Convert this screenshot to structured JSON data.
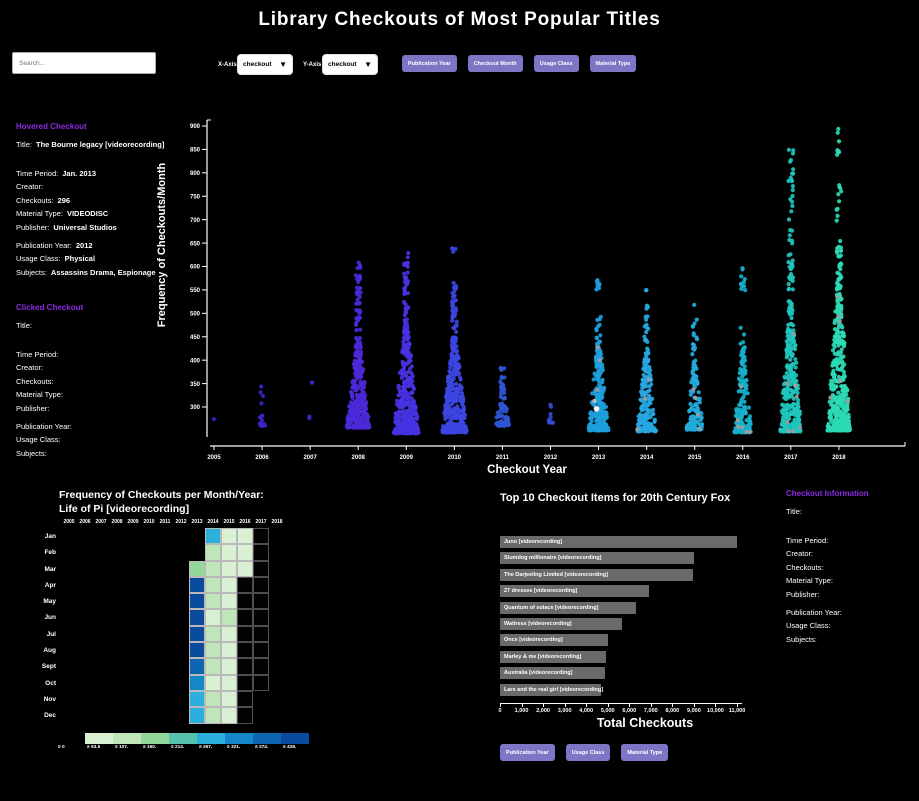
{
  "page": {
    "title": "Library Checkouts of Most Popular Titles"
  },
  "colors": {
    "background": "#000000",
    "heading_purple": "#8a2be2",
    "button_purple": "#7d76c4",
    "bar_gray": "#6a6a6a",
    "text": "#ffffff"
  },
  "controls": {
    "search_placeholder": "Search...",
    "x_axis_label": "X-Axis",
    "x_axis_value": "checkout",
    "y_axis_label": "Y-Axis",
    "y_axis_value": "checkout",
    "top_buttons": [
      "Publication Year",
      "Checkout Month",
      "Usage Class",
      "Material Type"
    ],
    "bottom_buttons": [
      "Publication Year",
      "Usage Class",
      "Material Type"
    ]
  },
  "panels": {
    "hovered": {
      "heading": "Hovered Checkout",
      "groups": [
        [
          {
            "label": "Title:",
            "value": "The Bourne legacy [videorecording]"
          }
        ],
        [
          {
            "label": "Time Period:",
            "value": "Jan. 2013"
          },
          {
            "label": "Creator:",
            "value": ""
          },
          {
            "label": "Checkouts:",
            "value": "296"
          },
          {
            "label": "Material Type:",
            "value": "VIDEODISC"
          },
          {
            "label": "Publisher:",
            "value": "Universal Studios"
          }
        ],
        [
          {
            "label": "Publication Year:",
            "value": "2012"
          },
          {
            "label": "Usage Class:",
            "value": "Physical"
          },
          {
            "label": "Subjects:",
            "value": "Assassins Drama, Espionage"
          }
        ]
      ]
    },
    "clicked": {
      "heading": "Clicked Checkout",
      "groups": [
        [
          {
            "label": "Title:",
            "value": ""
          }
        ],
        [
          {
            "label": "Time Period:",
            "value": ""
          },
          {
            "label": "Creator:",
            "value": ""
          },
          {
            "label": "Checkouts:",
            "value": ""
          },
          {
            "label": "Material Type:",
            "value": ""
          },
          {
            "label": "Publisher:",
            "value": ""
          }
        ],
        [
          {
            "label": "Publication Year:",
            "value": ""
          },
          {
            "label": "Usage Class:",
            "value": ""
          },
          {
            "label": "Subjects:",
            "value": ""
          }
        ]
      ]
    },
    "info": {
      "heading": "Checkout Information",
      "groups": [
        [
          {
            "label": "Title:",
            "value": ""
          }
        ],
        [
          {
            "label": "Time Period:",
            "value": ""
          },
          {
            "label": "Creator:",
            "value": ""
          },
          {
            "label": "Checkouts:",
            "value": ""
          },
          {
            "label": "Material Type:",
            "value": ""
          },
          {
            "label": "Publisher:",
            "value": ""
          }
        ],
        [
          {
            "label": "Publication Year:",
            "value": ""
          },
          {
            "label": "Usage Class:",
            "value": ""
          },
          {
            "label": "Subjects:",
            "value": ""
          }
        ]
      ]
    }
  },
  "chart_data": [
    {
      "type": "scatter",
      "xlabel": "Checkout Year",
      "ylabel": "Frequency of Checkouts/Month",
      "x_ticks": [
        "2005",
        "2006",
        "2007",
        "2008",
        "2009",
        "2010",
        "2011",
        "2012",
        "2013",
        "2014",
        "2015",
        "2016",
        "2017",
        "2018"
      ],
      "y_ticks": [
        "300",
        "350",
        "400",
        "450",
        "500",
        "550",
        "600",
        "650",
        "700",
        "750",
        "800",
        "850",
        "900"
      ],
      "ylim": [
        236,
        910
      ],
      "gray_color": "#9f9f9f",
      "highlight": {
        "year": 2013,
        "value": 296,
        "color": "#ffffff",
        "note": "hovered point: The Bourne legacy, Jan. 2013"
      },
      "clusters": [
        {
          "year": 2005,
          "color": "#3b20c2",
          "n": 1,
          "lo": 274,
          "hi": 277,
          "w": 1,
          "tails": [],
          "gray": 0
        },
        {
          "year": 2006,
          "color": "#4023c9",
          "n": 13,
          "lo": 260,
          "hi": 318,
          "w": 3,
          "tails": [
            [
              322,
              348,
              3
            ]
          ],
          "gray": 0
        },
        {
          "year": 2007,
          "color": "#4326cd",
          "n": 2,
          "lo": 276,
          "hi": 300,
          "w": 1,
          "tails": [
            [
              350,
              354,
              1
            ]
          ],
          "gray": 0
        },
        {
          "year": 2008,
          "color": "#4b29d9",
          "n": 300,
          "lo": 256,
          "hi": 445,
          "w": 11.5,
          "tails": [
            [
              445,
              560,
              28
            ],
            [
              560,
              608,
              12
            ]
          ],
          "gray": 0
        },
        {
          "year": 2009,
          "color": "#4632e1",
          "n": 400,
          "lo": 244,
          "hi": 470,
          "w": 12.5,
          "tails": [
            [
              470,
              580,
              32
            ],
            [
              580,
              638,
              12
            ]
          ],
          "gray": 0
        },
        {
          "year": 2010,
          "color": "#3c46e2",
          "n": 360,
          "lo": 246,
          "hi": 450,
          "w": 12.5,
          "tails": [
            [
              450,
              545,
              28
            ],
            [
              545,
              575,
              6
            ],
            [
              620,
              668,
              3
            ]
          ],
          "gray": 0
        },
        {
          "year": 2011,
          "color": "#2f55d3",
          "n": 80,
          "lo": 260,
          "hi": 352,
          "w": 7,
          "tails": [
            [
              352,
              392,
              10
            ]
          ],
          "gray": 0
        },
        {
          "year": 2012,
          "color": "#3a49d9",
          "n": 11,
          "lo": 266,
          "hi": 312,
          "w": 2.5,
          "tails": [],
          "gray": 0
        },
        {
          "year": 2013,
          "color": "#1d9fdc",
          "n": 220,
          "lo": 250,
          "hi": 440,
          "w": 10,
          "tails": [
            [
              440,
              500,
              10
            ],
            [
              545,
              588,
              8
            ]
          ],
          "gray": 4
        },
        {
          "year": 2014,
          "color": "#27a7e3",
          "n": 180,
          "lo": 248,
          "hi": 425,
          "w": 9.5,
          "tails": [
            [
              425,
              500,
              12
            ],
            [
              500,
              562,
              6
            ]
          ],
          "gray": 3
        },
        {
          "year": 2015,
          "color": "#23abdd",
          "n": 130,
          "lo": 252,
          "hi": 400,
          "w": 8.5,
          "tails": [
            [
              400,
              470,
              10
            ],
            [
              470,
              528,
              5
            ]
          ],
          "gray": 4
        },
        {
          "year": 2016,
          "color": "#16b1ca",
          "n": 160,
          "lo": 246,
          "hi": 425,
          "w": 8.5,
          "tails": [
            [
              425,
              470,
              6
            ],
            [
              535,
              605,
              10
            ]
          ],
          "gray": 6
        },
        {
          "year": 2017,
          "color": "#1fc6bd",
          "n": 310,
          "lo": 248,
          "hi": 525,
          "w": 10.5,
          "tails": [
            [
              525,
              620,
              22
            ],
            [
              620,
              740,
              12
            ],
            [
              740,
              810,
              12
            ],
            [
              810,
              875,
              5
            ]
          ],
          "gray": 8
        },
        {
          "year": 2018,
          "color": "#2cdab6",
          "n": 400,
          "lo": 250,
          "hi": 565,
          "w": 11.5,
          "tails": [
            [
              565,
              655,
              25
            ],
            [
              655,
              810,
              10
            ],
            [
              820,
              908,
              8
            ]
          ],
          "gray": 6
        }
      ]
    },
    {
      "type": "heatmap",
      "title_line1": "Frequency of Checkouts per Month/Year:",
      "title_line2": "Life of Pi [videorecording]",
      "rows": [
        "Jan",
        "Feb",
        "Mar",
        "Apr",
        "May",
        "Jun",
        "Jul",
        "Aug",
        "Sept",
        "Oct",
        "Nov",
        "Dec"
      ],
      "cols": [
        "2005",
        "2006",
        "2007",
        "2008",
        "2009",
        "2010",
        "2011",
        "2012",
        "2013",
        "2014",
        "2015",
        "2016",
        "2017",
        "2018"
      ],
      "palette": [
        "#d9f0d3",
        "#bfe6b8",
        "#93d79b",
        "#55c2ab",
        "#2cafdc",
        "#1387c8",
        "#0e66b2",
        "#0b4b9d"
      ],
      "legend_labels": [
        "≥ 0",
        "≥ 53.5",
        "≥ 107.",
        "≥ 160.",
        "≥ 214.",
        "≥ 267.",
        "≥ 321.",
        "≥ 374.",
        "≥ 428."
      ],
      "cells": [
        {
          "m": "Jan",
          "y": "2014",
          "bin": 4
        },
        {
          "m": "Jan",
          "y": "2015",
          "bin": 0
        },
        {
          "m": "Jan",
          "y": "2016",
          "bin": 0
        },
        {
          "m": "Feb",
          "y": "2014",
          "bin": 1
        },
        {
          "m": "Feb",
          "y": "2015",
          "bin": 0
        },
        {
          "m": "Feb",
          "y": "2016",
          "bin": 0
        },
        {
          "m": "Mar",
          "y": "2013",
          "bin": 2
        },
        {
          "m": "Mar",
          "y": "2014",
          "bin": 1
        },
        {
          "m": "Mar",
          "y": "2015",
          "bin": 0
        },
        {
          "m": "Mar",
          "y": "2016",
          "bin": 0
        },
        {
          "m": "Apr",
          "y": "2013",
          "bin": 7
        },
        {
          "m": "Apr",
          "y": "2014",
          "bin": 1
        },
        {
          "m": "Apr",
          "y": "2015",
          "bin": 0
        },
        {
          "m": "May",
          "y": "2013",
          "bin": 7
        },
        {
          "m": "May",
          "y": "2014",
          "bin": 1
        },
        {
          "m": "May",
          "y": "2015",
          "bin": 0
        },
        {
          "m": "Jun",
          "y": "2013",
          "bin": 7
        },
        {
          "m": "Jun",
          "y": "2014",
          "bin": 0
        },
        {
          "m": "Jun",
          "y": "2015",
          "bin": 1
        },
        {
          "m": "Jul",
          "y": "2013",
          "bin": 7
        },
        {
          "m": "Jul",
          "y": "2014",
          "bin": 1
        },
        {
          "m": "Jul",
          "y": "2015",
          "bin": 0
        },
        {
          "m": "Aug",
          "y": "2013",
          "bin": 7
        },
        {
          "m": "Aug",
          "y": "2014",
          "bin": 1
        },
        {
          "m": "Aug",
          "y": "2015",
          "bin": 0
        },
        {
          "m": "Sept",
          "y": "2013",
          "bin": 6
        },
        {
          "m": "Sept",
          "y": "2014",
          "bin": 1
        },
        {
          "m": "Sept",
          "y": "2015",
          "bin": 0
        },
        {
          "m": "Oct",
          "y": "2013",
          "bin": 5
        },
        {
          "m": "Oct",
          "y": "2014",
          "bin": 0
        },
        {
          "m": "Oct",
          "y": "2015",
          "bin": 0
        },
        {
          "m": "Nov",
          "y": "2013",
          "bin": 4
        },
        {
          "m": "Nov",
          "y": "2014",
          "bin": 1
        },
        {
          "m": "Nov",
          "y": "2015",
          "bin": 0
        },
        {
          "m": "Dec",
          "y": "2013",
          "bin": 4
        },
        {
          "m": "Dec",
          "y": "2014",
          "bin": 1
        },
        {
          "m": "Dec",
          "y": "2015",
          "bin": 0
        }
      ],
      "empty_cells": [
        {
          "m": "Jan",
          "y": "2017"
        },
        {
          "m": "Feb",
          "y": "2017"
        },
        {
          "m": "Mar",
          "y": "2017"
        },
        {
          "m": "Apr",
          "y": "2016"
        },
        {
          "m": "Apr",
          "y": "2017"
        },
        {
          "m": "May",
          "y": "2016"
        },
        {
          "m": "May",
          "y": "2017"
        },
        {
          "m": "Jun",
          "y": "2016"
        },
        {
          "m": "Jun",
          "y": "2017"
        },
        {
          "m": "Jul",
          "y": "2016"
        },
        {
          "m": "Jul",
          "y": "2017"
        },
        {
          "m": "Aug",
          "y": "2016"
        },
        {
          "m": "Aug",
          "y": "2017"
        },
        {
          "m": "Sept",
          "y": "2016"
        },
        {
          "m": "Sept",
          "y": "2017"
        },
        {
          "m": "Oct",
          "y": "2016"
        },
        {
          "m": "Oct",
          "y": "2017"
        },
        {
          "m": "Nov",
          "y": "2016"
        },
        {
          "m": "Dec",
          "y": "2016"
        }
      ]
    },
    {
      "type": "bar",
      "title": "Top 10 Checkout Items for 20th Century Fox",
      "xlabel": "Total Checkouts",
      "xlim": [
        0,
        11000
      ],
      "x_ticks": [
        "0",
        "1,000",
        "2,000",
        "3,000",
        "4,000",
        "5,000",
        "6,000",
        "7,000",
        "8,000",
        "9,000",
        "10,000",
        "11,000"
      ],
      "items": [
        {
          "label": "Juno [videorecording]",
          "value": 11000
        },
        {
          "label": "Slumdog millionaire [videorecording]",
          "value": 9000
        },
        {
          "label": "The Darjeeling Limited [videorecording]",
          "value": 8950
        },
        {
          "label": "27 dresses [videorecording]",
          "value": 6900
        },
        {
          "label": "Quantum of solace [videorecording]",
          "value": 6300
        },
        {
          "label": "Waitress [videorecording]",
          "value": 5650
        },
        {
          "label": "Once [videorecording]",
          "value": 5000
        },
        {
          "label": "Marley & me [videorecording]",
          "value": 4900
        },
        {
          "label": "Australia [videorecording]",
          "value": 4850
        },
        {
          "label": "Lars and the real girl [videorecording]",
          "value": 4700
        }
      ]
    }
  ]
}
